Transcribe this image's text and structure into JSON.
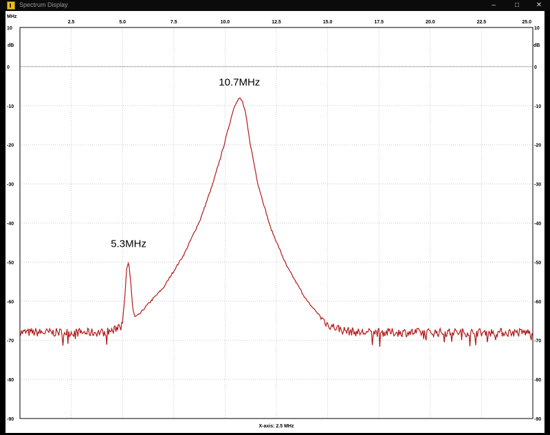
{
  "window": {
    "title": "Spectrum Display",
    "min_glyph": "–",
    "max_glyph": "□",
    "close_glyph": "✕",
    "icon": "app-icon"
  },
  "colors": {
    "trace": "#b01818",
    "grid": "#c8c8c8",
    "zero_line": "#555555",
    "background": "#ffffff",
    "frame": "#000000"
  },
  "chart_data": {
    "type": "line",
    "x_unit_label": "MHz",
    "y_unit_label": "dB",
    "xlim": [
      0,
      25
    ],
    "ylim": [
      -90,
      10
    ],
    "x_ticks": [
      "2.5",
      "5.0",
      "7.5",
      "10.0",
      "12.5",
      "15.0",
      "17.5",
      "20.0",
      "22.5",
      "25.0"
    ],
    "y_ticks": [
      "10",
      "0",
      "-10",
      "-20",
      "-30",
      "-40",
      "-50",
      "-60",
      "-70",
      "-80",
      "-90"
    ],
    "x_scale_note": "X-axis: 2.5 MHz",
    "grid": true,
    "zero_reference_line": 0,
    "annotations": [
      {
        "text": "10.7MHz",
        "x": 10.7,
        "y": -8
      },
      {
        "text": "5.3MHz",
        "x": 5.3,
        "y": -50
      }
    ],
    "series": [
      {
        "noise_floor_db": -68,
        "x": [
          0,
          4.0,
          4.6,
          5.0,
          5.1,
          5.2,
          5.3,
          5.4,
          5.5,
          5.6,
          5.8,
          6.2,
          7.0,
          8.0,
          8.8,
          9.4,
          9.9,
          10.2,
          10.4,
          10.55,
          10.7,
          10.85,
          11.0,
          11.2,
          11.6,
          12.2,
          13.0,
          14.0,
          15.0,
          15.8,
          16.5,
          17.5,
          19.0,
          21.0,
          23.0,
          25.0
        ],
        "y": [
          -68,
          -68,
          -67.5,
          -65,
          -60,
          -52,
          -50,
          -55,
          -62,
          -64,
          -63.5,
          -61,
          -56.5,
          -48,
          -39,
          -30,
          -21,
          -15,
          -11,
          -9,
          -8,
          -9,
          -12,
          -19,
          -30,
          -41,
          -51,
          -60,
          -66,
          -67.5,
          -68,
          -68,
          -68,
          -68,
          -68,
          -68
        ]
      }
    ]
  }
}
